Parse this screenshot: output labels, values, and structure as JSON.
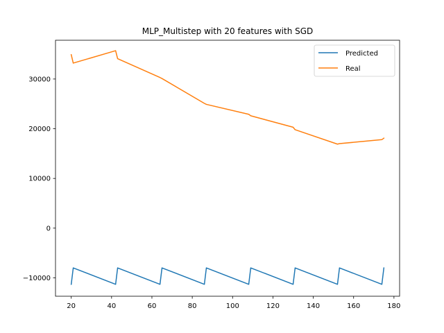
{
  "chart_data": {
    "type": "line",
    "title": "MLP_Multistep with 20 features with SGD",
    "xlabel": "",
    "ylabel": "",
    "xlim": [
      12.2,
      182.8
    ],
    "ylim": [
      -13700,
      37800
    ],
    "xticks": [
      20,
      40,
      60,
      80,
      100,
      120,
      140,
      160,
      180
    ],
    "yticks": [
      -10000,
      0,
      10000,
      20000,
      30000
    ],
    "grid": false,
    "legend_position": "upper right",
    "series": [
      {
        "name": "Predicted",
        "color": "#1f77b4",
        "x": [
          20,
          21,
          42,
          43,
          64,
          65,
          86,
          87,
          108,
          109,
          130,
          131,
          152,
          153,
          174,
          175
        ],
        "y": [
          -11300,
          -8000,
          -11300,
          -8000,
          -11300,
          -8000,
          -11300,
          -8000,
          -11300,
          -8000,
          -11300,
          -8000,
          -11300,
          -8000,
          -11300,
          -8000
        ]
      },
      {
        "name": "Real",
        "color": "#ff7f0e",
        "x": [
          20,
          21,
          42,
          43,
          64,
          65,
          86,
          87,
          108,
          109,
          130,
          131,
          152,
          153,
          174,
          175
        ],
        "y": [
          34900,
          33200,
          35700,
          34100,
          30300,
          30100,
          25100,
          24900,
          22900,
          22600,
          20300,
          19800,
          16900,
          17000,
          17800,
          18100
        ]
      }
    ]
  }
}
